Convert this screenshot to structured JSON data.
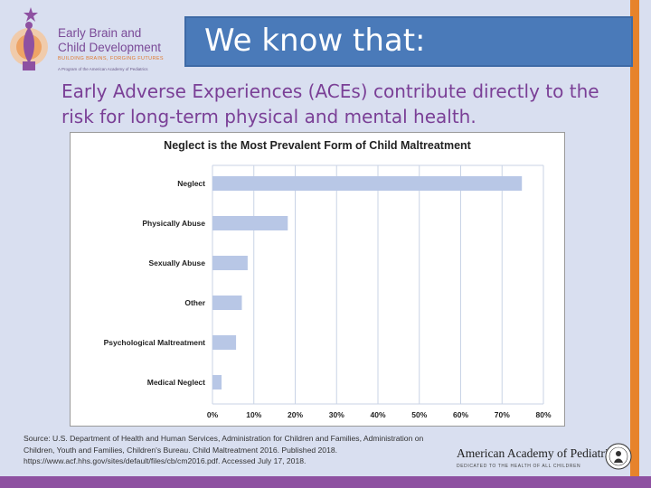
{
  "logo": {
    "line1": "Early Brain and",
    "line2": "Child Development",
    "tagline": "BUILDING BRAINS, FORGING FUTURES",
    "small": "A Program of the American Academy of Pediatrics"
  },
  "header": {
    "title": "We know that:"
  },
  "subtitle": "Early Adverse Experiences (ACEs) contribute directly to the risk for long-term physical and mental health.",
  "colors": {
    "bar": "#b8c7e6",
    "title_bar": "#4a7ab9",
    "subtitle": "#7a3f96",
    "right_bar": "#e7832b",
    "bottom_bar": "#8e51a1"
  },
  "chart_data": {
    "type": "bar",
    "orientation": "horizontal",
    "title": "Neglect is the Most Prevalent Form of Child Maltreatment",
    "categories": [
      "Neglect",
      "Physically Abuse",
      "Sexually Abuse",
      "Other",
      "Psychological Maltreatment",
      "Medical Neglect"
    ],
    "values": [
      74.8,
      18.2,
      8.5,
      7.1,
      5.7,
      2.2
    ],
    "xlim": [
      0,
      80
    ],
    "xticks": [
      "0%",
      "10%",
      "20%",
      "30%",
      "40%",
      "50%",
      "60%",
      "70%",
      "80%"
    ],
    "grid": true,
    "legend": "none"
  },
  "source": "Source: U.S. Department of Health and Human Services, Administration for Children and Families, Administration on Children, Youth and Families, Children's Bureau. Child Maltreatment 2016. Published 2018. https://www.acf.hhs.gov/sites/default/files/cb/cm2016.pdf. Accessed July 17, 2018.",
  "aap": {
    "name": "American Academy of Pediatrics",
    "tagline": "DEDICATED TO THE HEALTH OF ALL CHILDREN"
  }
}
